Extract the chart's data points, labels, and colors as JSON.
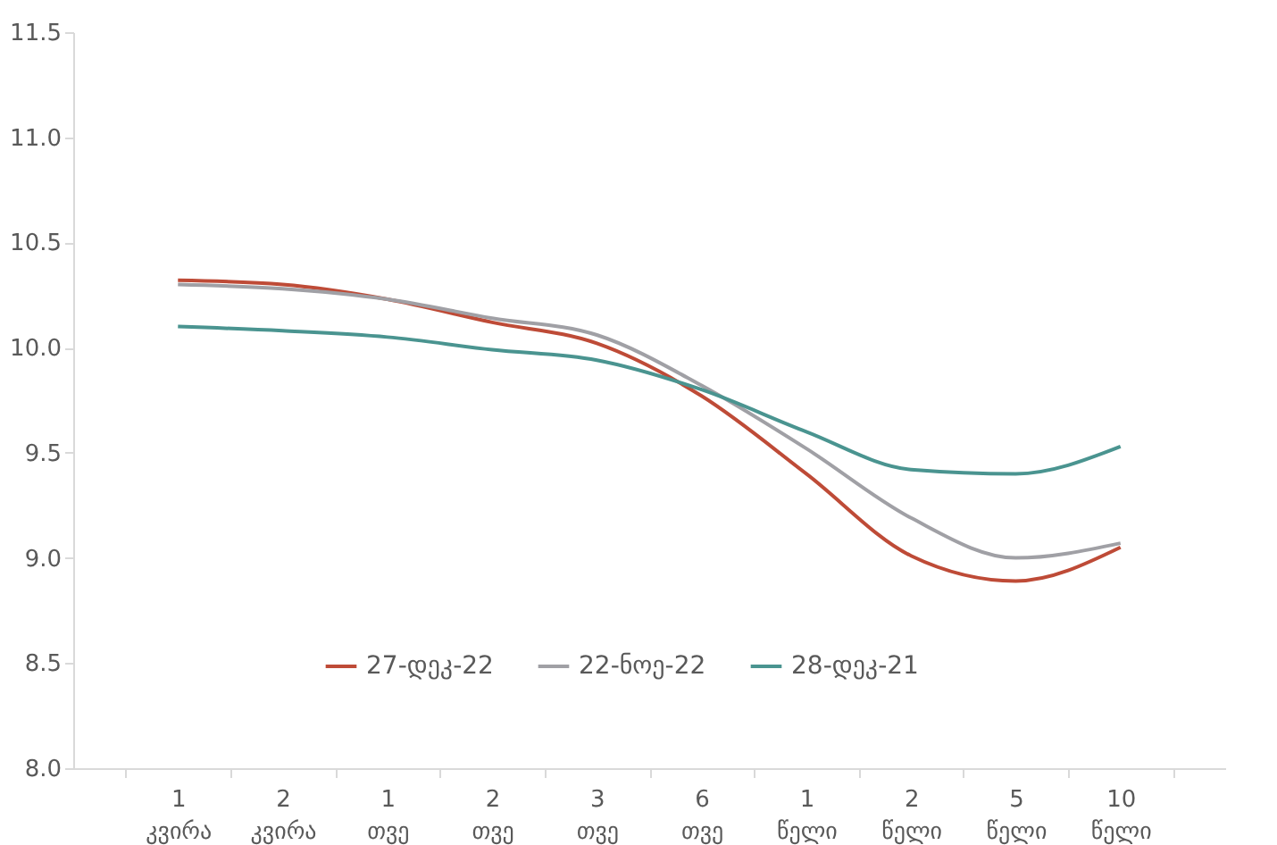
{
  "chart_data": {
    "type": "line",
    "categories": [
      "1 კვირა",
      "2 კვირა",
      "1 თვე",
      "2 თვე",
      "3 თვე",
      "6 თვე",
      "1 წელი",
      "2 წელი",
      "5 წელი",
      "10 წელი"
    ],
    "series": [
      {
        "name": "27-დეკ-22",
        "color": "#be4b37",
        "values": [
          10.32,
          10.3,
          10.23,
          10.12,
          10.02,
          9.77,
          9.4,
          9.01,
          8.89,
          9.05
        ]
      },
      {
        "name": "22-ნოე-22",
        "color": "#a0a0a5",
        "values": [
          10.3,
          10.28,
          10.23,
          10.14,
          10.06,
          9.82,
          9.52,
          9.19,
          9.0,
          9.07
        ]
      },
      {
        "name": "28-დეკ-21",
        "color": "#4a9490",
        "values": [
          10.1,
          10.08,
          10.05,
          9.99,
          9.94,
          9.8,
          9.6,
          9.42,
          9.4,
          9.53
        ]
      }
    ],
    "ylim": [
      8.0,
      11.5
    ],
    "yticks": [
      {
        "value": 8,
        "label": "8.0"
      },
      {
        "value": 8.5,
        "label": "8.5"
      },
      {
        "value": 9,
        "label": "9.0"
      },
      {
        "value": 9.5,
        "label": "9.5"
      },
      {
        "value": 10,
        "label": "10.0"
      },
      {
        "value": 10.5,
        "label": "10.5"
      },
      {
        "value": 11,
        "label": "11.0"
      },
      {
        "value": 11.5,
        "label": "11.5"
      }
    ],
    "grid": false,
    "legend": "bottom",
    "marker": "none",
    "line_style": "solid"
  }
}
